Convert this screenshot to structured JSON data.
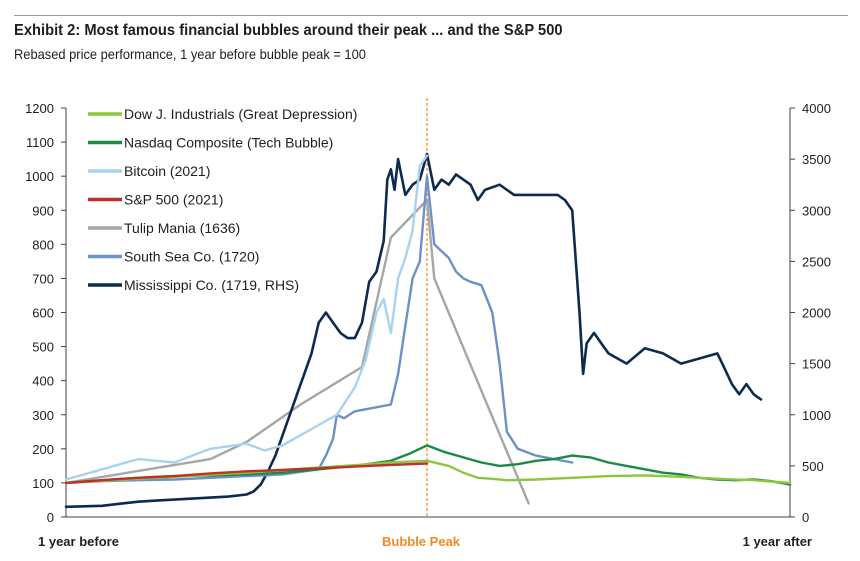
{
  "header": {
    "title": "Exhibit 2: Most famous financial bubbles around their peak ... and the S&P 500",
    "subtitle": "Rebased price performance, 1 year before bubble peak = 100"
  },
  "chart_data": {
    "type": "line",
    "title": "Exhibit 2: Most famous financial bubbles around their peak ... and the S&P 500",
    "subtitle": "Rebased price performance, 1 year before bubble peak = 100",
    "x_labels": {
      "start": "1 year before",
      "peak": "Bubble Peak",
      "end": "1 year after"
    },
    "x_range": [
      -1,
      1
    ],
    "ylim_left": [
      0,
      1200
    ],
    "yticks_left": [
      0,
      100,
      200,
      300,
      400,
      500,
      600,
      700,
      800,
      900,
      1000,
      1100,
      1200
    ],
    "ylim_right": [
      0,
      4000
    ],
    "yticks_right": [
      0,
      500,
      1000,
      1500,
      2000,
      2500,
      3000,
      3500,
      4000
    ],
    "legend_position": "top-left",
    "grid": false,
    "peak_line_color": "#f08a24",
    "series": [
      {
        "name": "Dow J. Industrials (Great Depression)",
        "color": "#8dc63f",
        "axis": "left",
        "points": [
          [
            -1,
            100
          ],
          [
            -0.9,
            106
          ],
          [
            -0.8,
            112
          ],
          [
            -0.7,
            118
          ],
          [
            -0.6,
            124
          ],
          [
            -0.5,
            130
          ],
          [
            -0.4,
            138
          ],
          [
            -0.3,
            145
          ],
          [
            -0.2,
            152
          ],
          [
            -0.1,
            160
          ],
          [
            0,
            165
          ],
          [
            0.06,
            150
          ],
          [
            0.1,
            130
          ],
          [
            0.14,
            115
          ],
          [
            0.18,
            112
          ],
          [
            0.22,
            108
          ],
          [
            0.3,
            110
          ],
          [
            0.4,
            115
          ],
          [
            0.5,
            120
          ],
          [
            0.6,
            122
          ],
          [
            0.7,
            118
          ],
          [
            0.8,
            112
          ],
          [
            0.9,
            108
          ],
          [
            1,
            100
          ]
        ]
      },
      {
        "name": "Nasdaq Composite (Tech Bubble)",
        "color": "#1a8a44",
        "axis": "left",
        "points": [
          [
            -1,
            100
          ],
          [
            -0.9,
            108
          ],
          [
            -0.8,
            115
          ],
          [
            -0.7,
            120
          ],
          [
            -0.6,
            122
          ],
          [
            -0.5,
            125
          ],
          [
            -0.4,
            130
          ],
          [
            -0.3,
            140
          ],
          [
            -0.2,
            150
          ],
          [
            -0.1,
            165
          ],
          [
            -0.05,
            185
          ],
          [
            0,
            210
          ],
          [
            0.05,
            190
          ],
          [
            0.1,
            175
          ],
          [
            0.15,
            160
          ],
          [
            0.2,
            150
          ],
          [
            0.25,
            155
          ],
          [
            0.3,
            165
          ],
          [
            0.35,
            170
          ],
          [
            0.4,
            180
          ],
          [
            0.45,
            175
          ],
          [
            0.5,
            160
          ],
          [
            0.55,
            150
          ],
          [
            0.6,
            140
          ],
          [
            0.65,
            130
          ],
          [
            0.7,
            125
          ],
          [
            0.75,
            115
          ],
          [
            0.8,
            110
          ],
          [
            0.85,
            108
          ],
          [
            0.9,
            110
          ],
          [
            0.95,
            105
          ],
          [
            1,
            95
          ]
        ]
      },
      {
        "name": "Bitcoin (2021)",
        "color": "#a9d2ee",
        "axis": "left",
        "points": [
          [
            -1,
            110
          ],
          [
            -0.9,
            140
          ],
          [
            -0.8,
            170
          ],
          [
            -0.7,
            160
          ],
          [
            -0.6,
            200
          ],
          [
            -0.5,
            215
          ],
          [
            -0.45,
            195
          ],
          [
            -0.4,
            210
          ],
          [
            -0.35,
            240
          ],
          [
            -0.3,
            270
          ],
          [
            -0.25,
            300
          ],
          [
            -0.2,
            380
          ],
          [
            -0.17,
            460
          ],
          [
            -0.14,
            600
          ],
          [
            -0.12,
            640
          ],
          [
            -0.1,
            540
          ],
          [
            -0.08,
            700
          ],
          [
            -0.06,
            760
          ],
          [
            -0.04,
            840
          ],
          [
            -0.02,
            1030
          ],
          [
            0,
            1060
          ]
        ]
      },
      {
        "name": "S&P 500 (2021)",
        "color": "#c0302b",
        "axis": "left",
        "points": [
          [
            -1,
            100
          ],
          [
            -0.9,
            108
          ],
          [
            -0.8,
            115
          ],
          [
            -0.7,
            120
          ],
          [
            -0.6,
            128
          ],
          [
            -0.5,
            134
          ],
          [
            -0.4,
            138
          ],
          [
            -0.3,
            143
          ],
          [
            -0.2,
            148
          ],
          [
            -0.1,
            153
          ],
          [
            0,
            157
          ]
        ]
      },
      {
        "name": "Tulip Mania (1636)",
        "color": "#a6a6a6",
        "axis": "left",
        "points": [
          [
            -1,
            100
          ],
          [
            -0.6,
            170
          ],
          [
            -0.5,
            220
          ],
          [
            -0.35,
            330
          ],
          [
            -0.18,
            440
          ],
          [
            -0.1,
            820
          ],
          [
            0,
            930
          ],
          [
            0.02,
            700
          ],
          [
            0.28,
            40
          ]
        ]
      },
      {
        "name": "South Sea Co. (1720)",
        "color": "#6d91c7",
        "axis": "left",
        "points": [
          [
            -1,
            100
          ],
          [
            -0.9,
            105
          ],
          [
            -0.8,
            108
          ],
          [
            -0.7,
            110
          ],
          [
            -0.6,
            115
          ],
          [
            -0.5,
            120
          ],
          [
            -0.4,
            125
          ],
          [
            -0.3,
            140
          ],
          [
            -0.28,
            180
          ],
          [
            -0.26,
            230
          ],
          [
            -0.25,
            300
          ],
          [
            -0.23,
            290
          ],
          [
            -0.2,
            310
          ],
          [
            -0.15,
            320
          ],
          [
            -0.1,
            330
          ],
          [
            -0.08,
            420
          ],
          [
            -0.06,
            560
          ],
          [
            -0.04,
            700
          ],
          [
            -0.02,
            750
          ],
          [
            0,
            1000
          ],
          [
            0.02,
            800
          ],
          [
            0.04,
            780
          ],
          [
            0.06,
            760
          ],
          [
            0.08,
            720
          ],
          [
            0.1,
            700
          ],
          [
            0.12,
            690
          ],
          [
            0.15,
            680
          ],
          [
            0.18,
            600
          ],
          [
            0.2,
            450
          ],
          [
            0.22,
            250
          ],
          [
            0.25,
            200
          ],
          [
            0.3,
            180
          ],
          [
            0.35,
            170
          ],
          [
            0.4,
            160
          ]
        ]
      },
      {
        "name": "Mississippi Co. (1719, RHS)",
        "color": "#0d2a4f",
        "axis": "right",
        "points": [
          [
            -1,
            100
          ],
          [
            -0.9,
            110
          ],
          [
            -0.85,
            130
          ],
          [
            -0.8,
            150
          ],
          [
            -0.75,
            160
          ],
          [
            -0.7,
            170
          ],
          [
            -0.65,
            180
          ],
          [
            -0.6,
            190
          ],
          [
            -0.55,
            200
          ],
          [
            -0.5,
            220
          ],
          [
            -0.48,
            250
          ],
          [
            -0.46,
            320
          ],
          [
            -0.44,
            450
          ],
          [
            -0.42,
            600
          ],
          [
            -0.4,
            800
          ],
          [
            -0.38,
            1000
          ],
          [
            -0.36,
            1200
          ],
          [
            -0.34,
            1400
          ],
          [
            -0.32,
            1600
          ],
          [
            -0.3,
            1900
          ],
          [
            -0.28,
            2000
          ],
          [
            -0.26,
            1900
          ],
          [
            -0.24,
            1800
          ],
          [
            -0.22,
            1750
          ],
          [
            -0.2,
            1750
          ],
          [
            -0.18,
            1900
          ],
          [
            -0.16,
            2300
          ],
          [
            -0.14,
            2400
          ],
          [
            -0.12,
            2700
          ],
          [
            -0.11,
            3300
          ],
          [
            -0.1,
            3400
          ],
          [
            -0.09,
            3200
          ],
          [
            -0.08,
            3500
          ],
          [
            -0.06,
            3150
          ],
          [
            -0.04,
            3250
          ],
          [
            -0.02,
            3300
          ],
          [
            0,
            3550
          ],
          [
            0.02,
            3200
          ],
          [
            0.04,
            3300
          ],
          [
            0.06,
            3250
          ],
          [
            0.08,
            3350
          ],
          [
            0.1,
            3300
          ],
          [
            0.12,
            3250
          ],
          [
            0.14,
            3100
          ],
          [
            0.16,
            3200
          ],
          [
            0.2,
            3250
          ],
          [
            0.24,
            3150
          ],
          [
            0.3,
            3150
          ],
          [
            0.36,
            3150
          ],
          [
            0.38,
            3100
          ],
          [
            0.4,
            3000
          ],
          [
            0.42,
            2000
          ],
          [
            0.43,
            1400
          ],
          [
            0.44,
            1700
          ],
          [
            0.46,
            1800
          ],
          [
            0.48,
            1700
          ],
          [
            0.5,
            1600
          ],
          [
            0.55,
            1500
          ],
          [
            0.6,
            1650
          ],
          [
            0.65,
            1600
          ],
          [
            0.7,
            1500
          ],
          [
            0.75,
            1550
          ],
          [
            0.8,
            1600
          ],
          [
            0.82,
            1450
          ],
          [
            0.84,
            1300
          ],
          [
            0.86,
            1200
          ],
          [
            0.88,
            1300
          ],
          [
            0.9,
            1200
          ],
          [
            0.92,
            1150
          ]
        ]
      }
    ]
  }
}
